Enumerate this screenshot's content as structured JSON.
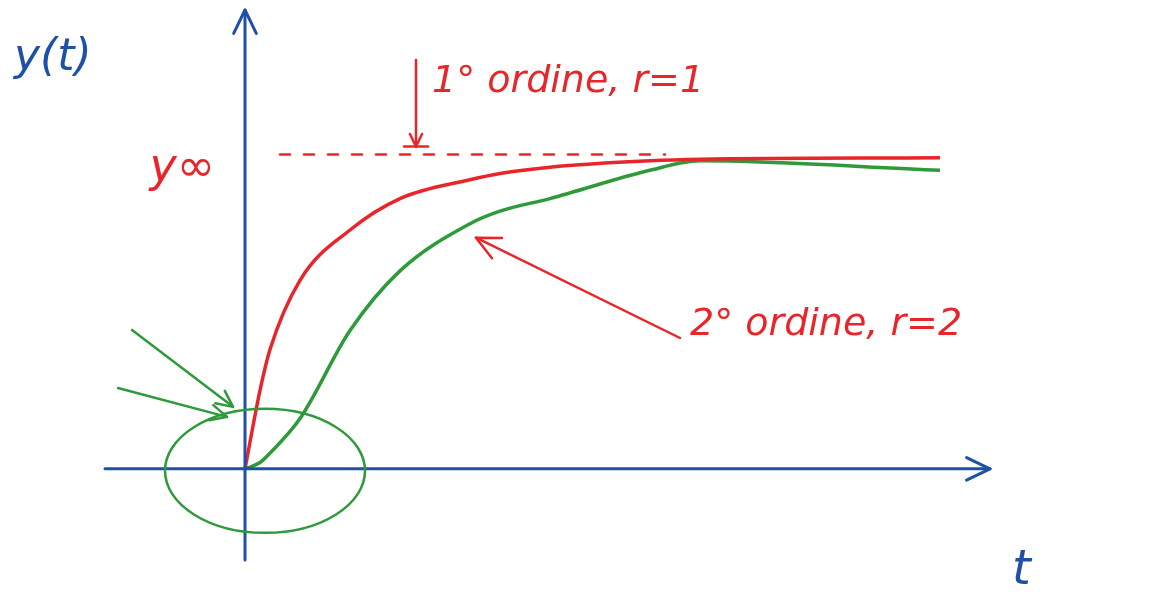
{
  "chart_data": {
    "type": "line",
    "x_label": "t",
    "y_label": "y(t)",
    "x": [
      0,
      0.15,
      0.25,
      0.55,
      1.05,
      1.55,
      2.25,
      2.55,
      3.05,
      4.05,
      4.55,
      6.95
    ],
    "series": [
      {
        "name": "1° ordine, r=1",
        "color": "#e8262a",
        "values": [
          0,
          0.25,
          0.38,
          0.6,
          0.76,
          0.86,
          0.92,
          0.94,
          0.96,
          0.98,
          0.985,
          0.99
        ]
      },
      {
        "name": "2° ordine, r=2",
        "color": "#2e9a3a",
        "values": [
          0,
          0.02,
          0.05,
          0.16,
          0.44,
          0.63,
          0.78,
          0.82,
          0.86,
          0.95,
          0.98,
          0.95
        ]
      }
    ],
    "annotations": [
      {
        "text": "y∞",
        "y": 1
      }
    ],
    "xlim": [
      -1.4,
      7.45
    ],
    "ylim": [
      -0.29,
      1.46
    ],
    "tick_labels": false
  }
}
